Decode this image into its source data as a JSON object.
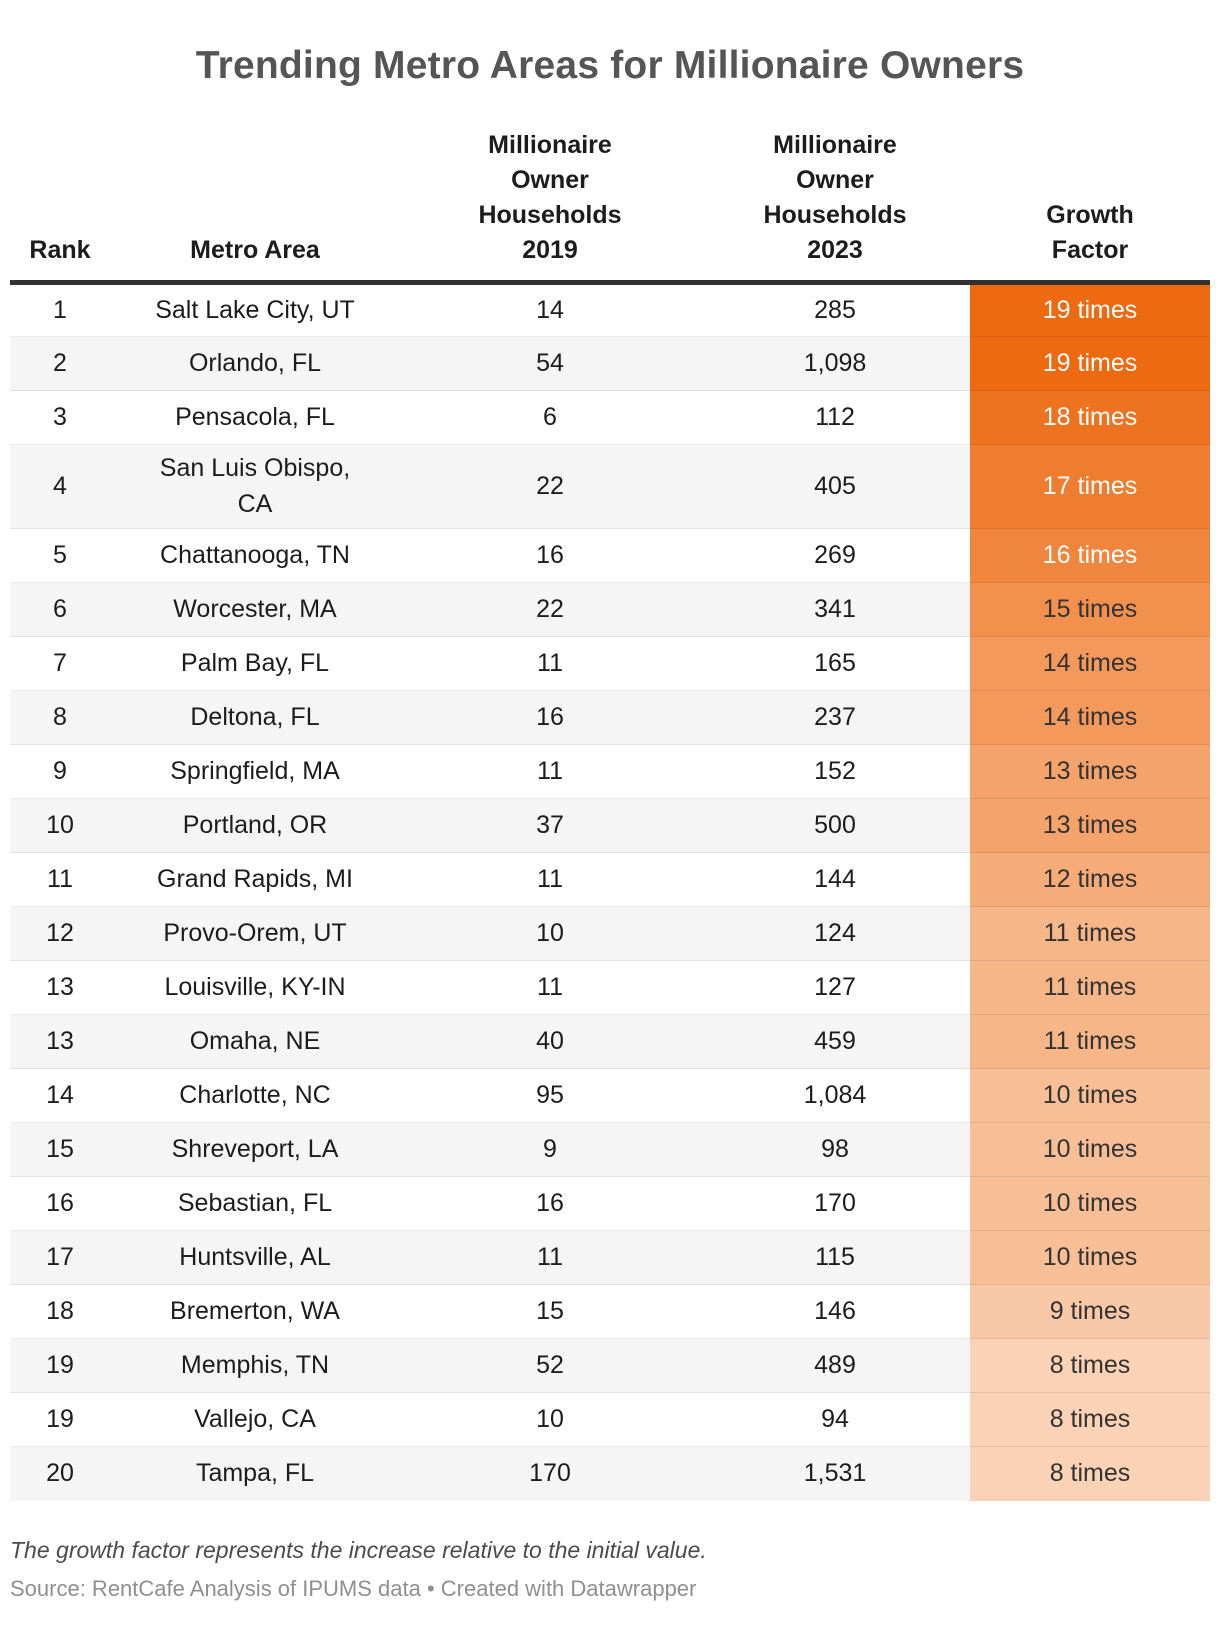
{
  "title": "Trending Metro Areas for Millionaire Owners",
  "footnote": "The growth factor represents the increase relative to the initial value.",
  "source": "Source: RentCafe Analysis of IPUMS data • Created with Datawrapper",
  "colors": {
    "title_text": "#555555",
    "header_rule": "#313131",
    "row_alt_bg": "#f5f5f5",
    "growth_text_light": "#ffffff",
    "growth_text_dark": "#333333",
    "growth_scale_max": "#ED6A11",
    "growth_scale_min": "#FAD2B5"
  },
  "chart_data": {
    "type": "table",
    "title": "Trending Metro Areas for Millionaire Owners",
    "columns": [
      "Rank",
      "Metro Area",
      "Millionaire\nOwner\nHouseholds\n2019",
      "Millionaire\nOwner\nHouseholds\n2023",
      "Growth\nFactor"
    ],
    "rows": [
      {
        "rank": "1",
        "metro": "Salt Lake City, UT",
        "hh_2019": "14",
        "hh_2023": "285",
        "growth": "19 times",
        "growth_value": 19,
        "cell_color": "#ED6A11",
        "text_color": "#ffffff"
      },
      {
        "rank": "2",
        "metro": "Orlando, FL",
        "hh_2019": "54",
        "hh_2023": "1,098",
        "growth": "19 times",
        "growth_value": 19,
        "cell_color": "#ED6A11",
        "text_color": "#ffffff"
      },
      {
        "rank": "3",
        "metro": "Pensacola, FL",
        "hh_2019": "6",
        "hh_2023": "112",
        "growth": "18 times",
        "growth_value": 18,
        "cell_color": "#EE7320",
        "text_color": "#ffffff"
      },
      {
        "rank": "4",
        "metro": "San Luis Obispo,\nCA",
        "hh_2019": "22",
        "hh_2023": "405",
        "growth": "17 times",
        "growth_value": 17,
        "cell_color": "#EF7D2F",
        "text_color": "#ffffff"
      },
      {
        "rank": "5",
        "metro": "Chattanooga, TN",
        "hh_2019": "16",
        "hh_2023": "269",
        "growth": "16 times",
        "growth_value": 16,
        "cell_color": "#F0863E",
        "text_color": "#ffffff"
      },
      {
        "rank": "6",
        "metro": "Worcester, MA",
        "hh_2019": "22",
        "hh_2023": "341",
        "growth": "15 times",
        "growth_value": 15,
        "cell_color": "#F2904D",
        "text_color": "#333333"
      },
      {
        "rank": "7",
        "metro": "Palm Bay, FL",
        "hh_2019": "11",
        "hh_2023": "165",
        "growth": "14 times",
        "growth_value": 14,
        "cell_color": "#F3995C",
        "text_color": "#333333"
      },
      {
        "rank": "8",
        "metro": "Deltona, FL",
        "hh_2019": "16",
        "hh_2023": "237",
        "growth": "14 times",
        "growth_value": 14,
        "cell_color": "#F3995C",
        "text_color": "#333333"
      },
      {
        "rank": "9",
        "metro": "Springfield, MA",
        "hh_2019": "11",
        "hh_2023": "152",
        "growth": "13 times",
        "growth_value": 13,
        "cell_color": "#F4A36A",
        "text_color": "#333333"
      },
      {
        "rank": "10",
        "metro": "Portland, OR",
        "hh_2019": "37",
        "hh_2023": "500",
        "growth": "13 times",
        "growth_value": 13,
        "cell_color": "#F4A36A",
        "text_color": "#333333"
      },
      {
        "rank": "11",
        "metro": "Grand Rapids, MI",
        "hh_2019": "11",
        "hh_2023": "144",
        "growth": "12 times",
        "growth_value": 12,
        "cell_color": "#F5AC79",
        "text_color": "#333333"
      },
      {
        "rank": "12",
        "metro": "Provo-Orem, UT",
        "hh_2019": "10",
        "hh_2023": "124",
        "growth": "11 times",
        "growth_value": 11,
        "cell_color": "#F6B688",
        "text_color": "#333333"
      },
      {
        "rank": "13",
        "metro": "Louisville, KY-IN",
        "hh_2019": "11",
        "hh_2023": "127",
        "growth": "11 times",
        "growth_value": 11,
        "cell_color": "#F6B688",
        "text_color": "#333333"
      },
      {
        "rank": "13",
        "metro": "Omaha, NE",
        "hh_2019": "40",
        "hh_2023": "459",
        "growth": "11 times",
        "growth_value": 11,
        "cell_color": "#F6B688",
        "text_color": "#333333"
      },
      {
        "rank": "14",
        "metro": "Charlotte, NC",
        "hh_2019": "95",
        "hh_2023": "1,084",
        "growth": "10 times",
        "growth_value": 10,
        "cell_color": "#F8BF97",
        "text_color": "#333333"
      },
      {
        "rank": "15",
        "metro": "Shreveport, LA",
        "hh_2019": "9",
        "hh_2023": "98",
        "growth": "10 times",
        "growth_value": 10,
        "cell_color": "#F8BF97",
        "text_color": "#333333"
      },
      {
        "rank": "16",
        "metro": "Sebastian, FL",
        "hh_2019": "16",
        "hh_2023": "170",
        "growth": "10 times",
        "growth_value": 10,
        "cell_color": "#F8BF97",
        "text_color": "#333333"
      },
      {
        "rank": "17",
        "metro": "Huntsville, AL",
        "hh_2019": "11",
        "hh_2023": "115",
        "growth": "10 times",
        "growth_value": 10,
        "cell_color": "#F8BF97",
        "text_color": "#333333"
      },
      {
        "rank": "18",
        "metro": "Bremerton, WA",
        "hh_2019": "15",
        "hh_2023": "146",
        "growth": "9 times",
        "growth_value": 9,
        "cell_color": "#F9C8A6",
        "text_color": "#333333"
      },
      {
        "rank": "19",
        "metro": "Memphis, TN",
        "hh_2019": "52",
        "hh_2023": "489",
        "growth": "8 times",
        "growth_value": 8,
        "cell_color": "#FAD2B5",
        "text_color": "#333333"
      },
      {
        "rank": "19",
        "metro": "Vallejo, CA",
        "hh_2019": "10",
        "hh_2023": "94",
        "growth": "8 times",
        "growth_value": 8,
        "cell_color": "#FAD2B5",
        "text_color": "#333333"
      },
      {
        "rank": "20",
        "metro": "Tampa, FL",
        "hh_2019": "170",
        "hh_2023": "1,531",
        "growth": "8 times",
        "growth_value": 8,
        "cell_color": "#FAD2B5",
        "text_color": "#333333"
      }
    ]
  }
}
